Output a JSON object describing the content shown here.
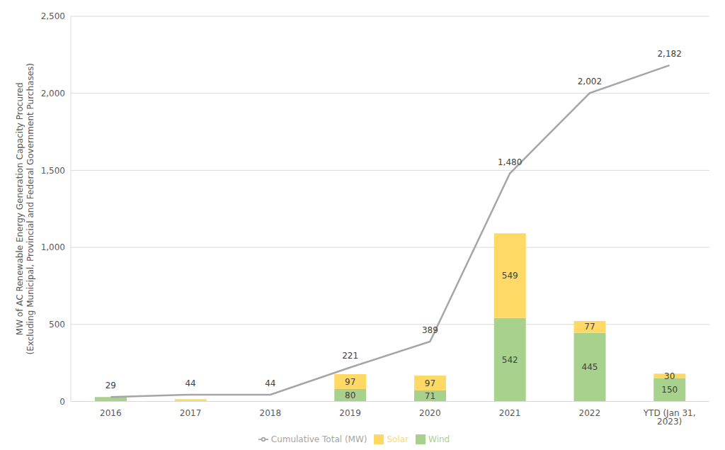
{
  "chart_data": {
    "type": "bar",
    "y_label": "MW of AC Renewable Energy Generation Capacity Procured\n(Excluding Municipal, Provincial and Federal Government Purchases)",
    "categories": [
      "2016",
      "2017",
      "2018",
      "2019",
      "2020",
      "2021",
      "2022",
      "YTD (Jan 31, 2023)"
    ],
    "series": [
      {
        "name": "Wind",
        "type": "bar",
        "color": "#a9d18e",
        "values": [
          29,
          0,
          0,
          80,
          71,
          542,
          445,
          150
        ],
        "value_labels": [
          null,
          null,
          null,
          "80",
          "71",
          "542",
          "445",
          "150"
        ]
      },
      {
        "name": "Solar",
        "type": "bar",
        "color": "#ffd966",
        "values": [
          0,
          15,
          0,
          97,
          97,
          549,
          77,
          30
        ],
        "value_labels": [
          null,
          null,
          null,
          "97",
          "97",
          "549",
          "77",
          "30"
        ]
      },
      {
        "name": "Cumulative Total (MW)",
        "type": "line",
        "color": "#a5a5a5",
        "values": [
          29,
          44,
          44,
          221,
          389,
          1480,
          2002,
          2182
        ],
        "value_labels": [
          "29",
          "44",
          "44",
          "221",
          "389",
          "1,480",
          "2,002",
          "2,182"
        ]
      }
    ],
    "ylim": [
      0,
      2500
    ],
    "yticks": [
      0,
      {
        "value": 500,
        "label": "500"
      },
      {
        "value": 1000,
        "label": "1,000"
      },
      {
        "value": 1500,
        "label": "1,500"
      },
      {
        "value": 2000,
        "label": "2,000"
      },
      {
        "value": 2500,
        "label": "2,500"
      }
    ],
    "grid": true,
    "stacked": true,
    "data_labels": true,
    "legend": "bottom"
  }
}
